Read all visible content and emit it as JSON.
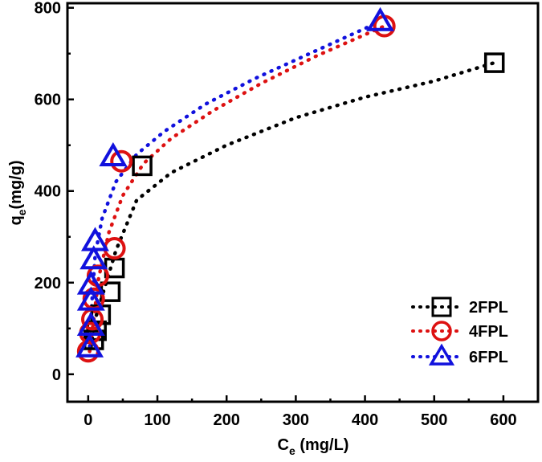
{
  "chart_data": {
    "type": "scatter",
    "title": "",
    "xlabel": {
      "main": "C",
      "sub": "e",
      "rest": " (mg/L)"
    },
    "ylabel": {
      "main": "q",
      "sub": "e",
      "rest": "(mg/g)"
    },
    "xlim": [
      -30,
      650
    ],
    "ylim": [
      -60,
      810
    ],
    "xticks": [
      0,
      100,
      200,
      300,
      400,
      500,
      600
    ],
    "yticks": [
      0,
      200,
      400,
      600,
      800
    ],
    "grid": false,
    "legend_position": "bottom-right",
    "series": [
      {
        "name": "2FPL",
        "marker": "square",
        "color": "#000000",
        "points": [
          [
            8,
            75
          ],
          [
            12,
            95
          ],
          [
            18,
            130
          ],
          [
            32,
            180
          ],
          [
            38,
            232
          ],
          [
            78,
            455
          ],
          [
            587,
            680
          ]
        ],
        "fit": [
          [
            4,
            60
          ],
          [
            10,
            120
          ],
          [
            20,
            170
          ],
          [
            40,
            270
          ],
          [
            70,
            380
          ],
          [
            120,
            440
          ],
          [
            200,
            500
          ],
          [
            300,
            560
          ],
          [
            400,
            605
          ],
          [
            500,
            640
          ],
          [
            587,
            680
          ]
        ]
      },
      {
        "name": "4FPL",
        "marker": "circle",
        "color": "#dd1111",
        "points": [
          [
            0,
            50
          ],
          [
            3,
            90
          ],
          [
            6,
            120
          ],
          [
            8,
            165
          ],
          [
            14,
            215
          ],
          [
            38,
            275
          ],
          [
            48,
            465
          ],
          [
            428,
            760
          ]
        ],
        "fit": [
          [
            2,
            50
          ],
          [
            8,
            120
          ],
          [
            15,
            210
          ],
          [
            30,
            310
          ],
          [
            50,
            390
          ],
          [
            80,
            460
          ],
          [
            120,
            515
          ],
          [
            180,
            575
          ],
          [
            250,
            635
          ],
          [
            330,
            695
          ],
          [
            428,
            760
          ]
        ]
      },
      {
        "name": "6FPL",
        "marker": "triangle",
        "color": "#1111dd",
        "points": [
          [
            2,
            58
          ],
          [
            4,
            105
          ],
          [
            4,
            160
          ],
          [
            4,
            195
          ],
          [
            8,
            250
          ],
          [
            10,
            290
          ],
          [
            36,
            475
          ],
          [
            422,
            770
          ]
        ],
        "fit": [
          [
            2,
            60
          ],
          [
            5,
            150
          ],
          [
            10,
            260
          ],
          [
            20,
            340
          ],
          [
            40,
            420
          ],
          [
            70,
            480
          ],
          [
            110,
            530
          ],
          [
            170,
            590
          ],
          [
            240,
            645
          ],
          [
            320,
            700
          ],
          [
            422,
            770
          ]
        ]
      }
    ]
  }
}
